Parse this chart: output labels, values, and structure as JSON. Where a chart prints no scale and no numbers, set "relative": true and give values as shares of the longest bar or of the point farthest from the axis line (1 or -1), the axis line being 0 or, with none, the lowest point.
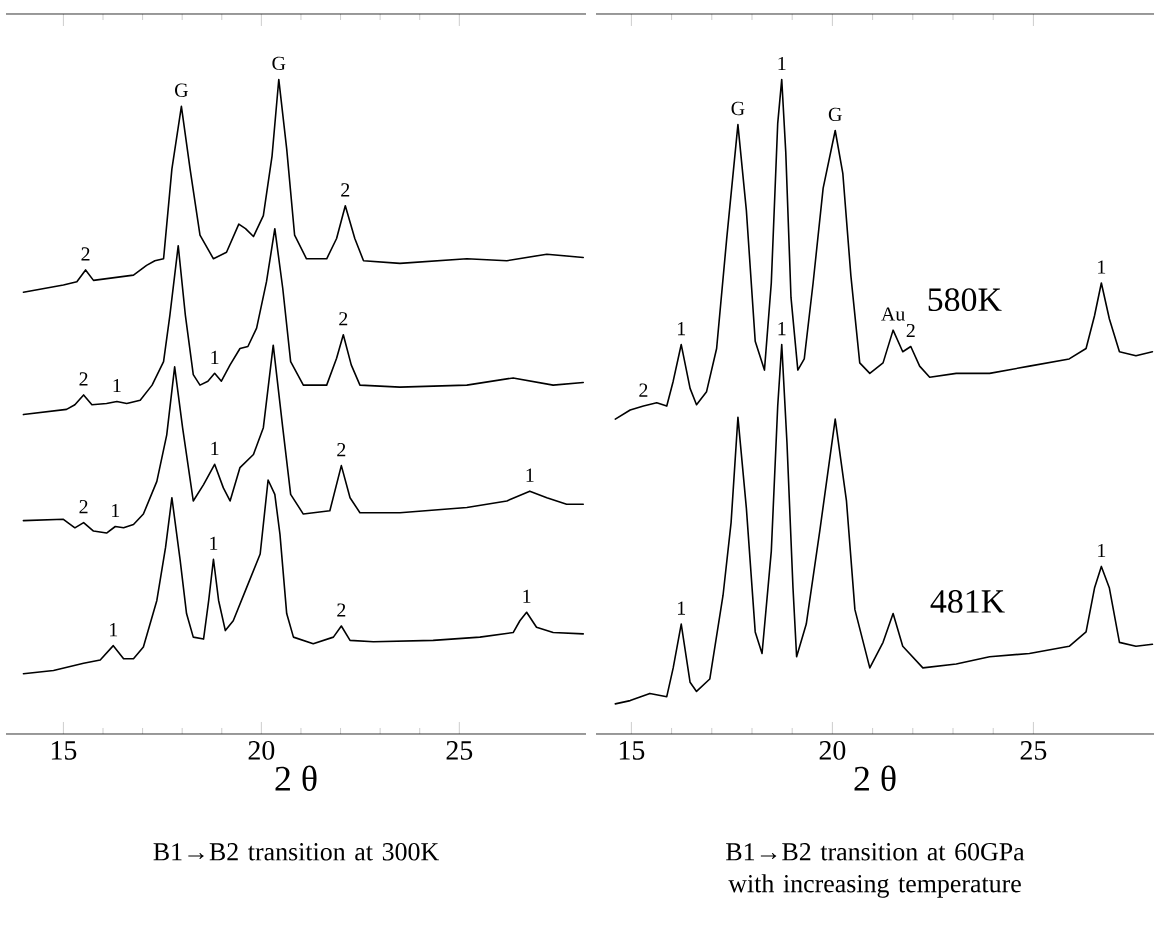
{
  "chart_data": [
    {
      "type": "line",
      "relative": true,
      "xlabel": "2 θ",
      "xlim": [
        13.55,
        28.2
      ],
      "xticks": [
        15,
        20,
        25
      ],
      "tick_labels": "x",
      "grid": false,
      "legend": false,
      "annotations": [
        {
          "text": "2",
          "x": 15.56,
          "y": 0.709
        },
        {
          "text": "G",
          "x": 17.98,
          "y": 0.959
        },
        {
          "text": "G",
          "x": 20.44,
          "y": 1.0
        },
        {
          "text": "2",
          "x": 22.12,
          "y": 0.807
        },
        {
          "text": "2",
          "x": 15.51,
          "y": 0.518
        },
        {
          "text": "1",
          "x": 16.35,
          "y": 0.508
        },
        {
          "text": "1",
          "x": 18.82,
          "y": 0.551
        },
        {
          "text": "2",
          "x": 22.07,
          "y": 0.61
        },
        {
          "text": "2",
          "x": 15.51,
          "y": 0.323
        },
        {
          "text": "1",
          "x": 16.31,
          "y": 0.317
        },
        {
          "text": "1",
          "x": 18.82,
          "y": 0.412
        },
        {
          "text": "2",
          "x": 22.02,
          "y": 0.41
        },
        {
          "text": "1",
          "x": 26.78,
          "y": 0.371
        },
        {
          "text": "1",
          "x": 16.26,
          "y": 0.135
        },
        {
          "text": "1",
          "x": 18.79,
          "y": 0.267
        },
        {
          "text": "2",
          "x": 22.02,
          "y": 0.165
        },
        {
          "text": "1",
          "x": 26.7,
          "y": 0.186
        },
        "B1→B2 transition at 300K"
      ],
      "series": [
        {
          "color": "#000000",
          "x": [
            13.99,
            15.0,
            15.34,
            15.56,
            15.76,
            16.77,
            17.1,
            17.31,
            17.53,
            17.74,
            17.98,
            18.2,
            18.45,
            18.79,
            19.12,
            19.43,
            19.6,
            19.8,
            20.05,
            20.27,
            20.44,
            20.64,
            20.84,
            21.14,
            21.65,
            21.9,
            22.12,
            22.36,
            22.58,
            23.5,
            25.19,
            26.2,
            27.21,
            28.13
          ],
          "values": [
            0.675,
            0.686,
            0.691,
            0.709,
            0.693,
            0.701,
            0.716,
            0.723,
            0.726,
            0.863,
            0.959,
            0.863,
            0.762,
            0.726,
            0.736,
            0.779,
            0.772,
            0.76,
            0.792,
            0.883,
            1.0,
            0.894,
            0.762,
            0.726,
            0.726,
            0.757,
            0.807,
            0.757,
            0.723,
            0.719,
            0.726,
            0.723,
            0.733,
            0.728
          ]
        },
        {
          "color": "#000000",
          "x": [
            13.99,
            15.08,
            15.29,
            15.51,
            15.72,
            16.09,
            16.35,
            16.6,
            16.94,
            17.24,
            17.53,
            17.69,
            17.9,
            18.08,
            18.28,
            18.45,
            18.65,
            18.82,
            18.99,
            19.21,
            19.46,
            19.66,
            19.88,
            20.13,
            20.34,
            20.54,
            20.74,
            21.06,
            21.65,
            21.9,
            22.07,
            22.27,
            22.49,
            23.5,
            25.19,
            26.36,
            27.37,
            28.13
          ],
          "values": [
            0.488,
            0.496,
            0.503,
            0.518,
            0.503,
            0.505,
            0.508,
            0.505,
            0.51,
            0.533,
            0.569,
            0.64,
            0.746,
            0.64,
            0.549,
            0.533,
            0.539,
            0.551,
            0.539,
            0.564,
            0.589,
            0.592,
            0.62,
            0.691,
            0.772,
            0.681,
            0.569,
            0.533,
            0.533,
            0.574,
            0.61,
            0.564,
            0.533,
            0.53,
            0.533,
            0.544,
            0.533,
            0.537
          ]
        },
        {
          "color": "#000000",
          "x": [
            13.99,
            15.0,
            15.29,
            15.51,
            15.76,
            16.09,
            16.31,
            16.52,
            16.77,
            17.02,
            17.36,
            17.61,
            17.81,
            18.01,
            18.28,
            18.54,
            18.82,
            19.04,
            19.21,
            19.46,
            19.8,
            20.05,
            20.3,
            20.54,
            20.74,
            21.06,
            21.73,
            22.02,
            22.24,
            22.49,
            23.5,
            25.19,
            26.2,
            26.78,
            27.21,
            27.71,
            28.13
          ],
          "values": [
            0.326,
            0.328,
            0.315,
            0.323,
            0.31,
            0.307,
            0.317,
            0.315,
            0.32,
            0.336,
            0.386,
            0.457,
            0.561,
            0.468,
            0.356,
            0.381,
            0.412,
            0.376,
            0.356,
            0.407,
            0.427,
            0.468,
            0.594,
            0.468,
            0.366,
            0.336,
            0.341,
            0.41,
            0.361,
            0.338,
            0.338,
            0.346,
            0.356,
            0.371,
            0.361,
            0.351,
            0.351
          ]
        },
        {
          "color": "#000000",
          "x": [
            13.99,
            14.75,
            15.51,
            15.93,
            16.26,
            16.52,
            16.77,
            17.02,
            17.36,
            17.58,
            17.74,
            17.95,
            18.11,
            18.28,
            18.54,
            18.67,
            18.79,
            18.92,
            19.09,
            19.29,
            19.63,
            19.97,
            20.17,
            20.34,
            20.47,
            20.64,
            20.81,
            21.31,
            21.82,
            22.02,
            22.24,
            22.83,
            24.34,
            25.52,
            26.36,
            26.53,
            26.7,
            26.95,
            27.37,
            28.13
          ],
          "values": [
            0.092,
            0.097,
            0.108,
            0.113,
            0.135,
            0.115,
            0.115,
            0.133,
            0.204,
            0.285,
            0.361,
            0.265,
            0.184,
            0.148,
            0.145,
            0.204,
            0.267,
            0.204,
            0.158,
            0.173,
            0.224,
            0.275,
            0.388,
            0.366,
            0.305,
            0.184,
            0.148,
            0.138,
            0.148,
            0.165,
            0.143,
            0.141,
            0.143,
            0.148,
            0.155,
            0.173,
            0.186,
            0.163,
            0.155,
            0.153
          ]
        }
      ]
    },
    {
      "type": "line",
      "relative": true,
      "xlabel": "2 θ",
      "xlim": [
        14.12,
        28.0
      ],
      "xticks": [
        15,
        20,
        25
      ],
      "tick_labels": "x",
      "grid": false,
      "legend": false,
      "annotations": [
        {
          "text": "2",
          "x": 15.3,
          "y": 0.501
        },
        {
          "text": "1",
          "x": 16.24,
          "y": 0.595
        },
        {
          "text": "G",
          "x": 17.65,
          "y": 0.931
        },
        {
          "text": "1",
          "x": 18.74,
          "y": 1.0
        },
        {
          "text": "G",
          "x": 20.07,
          "y": 0.922
        },
        {
          "text": "Au",
          "x": 21.51,
          "y": 0.617
        },
        {
          "text": "2",
          "x": 21.95,
          "y": 0.592
        },
        {
          "text": "1",
          "x": 26.69,
          "y": 0.689
        },
        {
          "text": "1",
          "x": 16.24,
          "y": 0.168
        },
        {
          "text": "1",
          "x": 18.74,
          "y": 0.595
        },
        {
          "text": "1",
          "x": 26.69,
          "y": 0.256
        },
        "B1→B2 transition at 60GPa with increasing temperature"
      ],
      "series": [
        {
          "name": "580K",
          "color": "#000000",
          "x": [
            14.6,
            14.97,
            15.3,
            15.63,
            15.88,
            16.04,
            16.24,
            16.46,
            16.62,
            16.87,
            17.12,
            17.37,
            17.65,
            17.86,
            18.08,
            18.31,
            18.48,
            18.64,
            18.74,
            18.84,
            18.97,
            19.14,
            19.3,
            19.52,
            19.77,
            20.07,
            20.26,
            20.46,
            20.68,
            20.93,
            21.26,
            21.51,
            21.75,
            21.95,
            22.17,
            22.42,
            23.08,
            23.91,
            24.9,
            25.89,
            26.31,
            26.52,
            26.69,
            26.89,
            27.14,
            27.55,
            27.96
          ],
          "values": [
            0.481,
            0.495,
            0.501,
            0.506,
            0.501,
            0.539,
            0.595,
            0.528,
            0.503,
            0.523,
            0.589,
            0.756,
            0.931,
            0.8,
            0.6,
            0.556,
            0.689,
            0.933,
            1.0,
            0.889,
            0.667,
            0.556,
            0.573,
            0.689,
            0.834,
            0.922,
            0.856,
            0.7,
            0.567,
            0.551,
            0.567,
            0.617,
            0.584,
            0.592,
            0.562,
            0.545,
            0.551,
            0.551,
            0.562,
            0.573,
            0.589,
            0.639,
            0.689,
            0.634,
            0.584,
            0.578,
            0.584
          ]
        },
        {
          "name": "481K",
          "color": "#000000",
          "x": [
            14.6,
            14.97,
            15.46,
            15.88,
            16.04,
            16.24,
            16.46,
            16.62,
            16.95,
            17.28,
            17.48,
            17.65,
            17.86,
            18.08,
            18.25,
            18.48,
            18.64,
            18.74,
            18.87,
            19.02,
            19.11,
            19.35,
            19.69,
            20.07,
            20.35,
            20.56,
            20.93,
            21.26,
            21.51,
            21.75,
            22.25,
            23.08,
            23.91,
            24.9,
            25.89,
            26.31,
            26.52,
            26.69,
            26.89,
            27.14,
            27.55,
            27.96
          ],
          "values": [
            0.046,
            0.051,
            0.062,
            0.057,
            0.101,
            0.168,
            0.079,
            0.065,
            0.084,
            0.212,
            0.323,
            0.484,
            0.345,
            0.156,
            0.123,
            0.279,
            0.501,
            0.595,
            0.445,
            0.223,
            0.118,
            0.168,
            0.312,
            0.481,
            0.356,
            0.19,
            0.101,
            0.14,
            0.184,
            0.134,
            0.101,
            0.107,
            0.118,
            0.123,
            0.134,
            0.156,
            0.223,
            0.256,
            0.223,
            0.14,
            0.134,
            0.137
          ]
        }
      ]
    }
  ]
}
